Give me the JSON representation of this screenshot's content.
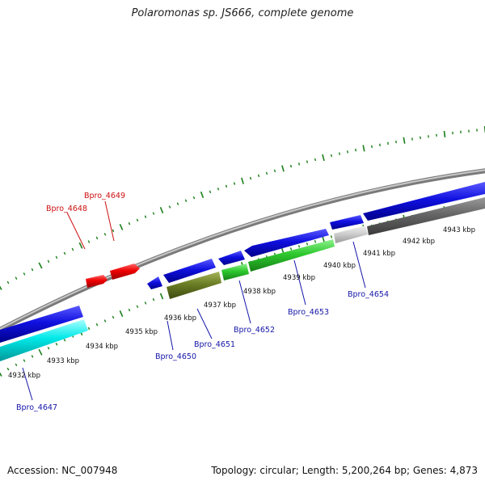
{
  "title": "Polaromonas sp. JS666, complete genome",
  "footer": {
    "accession": "Accession: NC_007948",
    "summary": "Topology: circular; Length: 5,200,264 bp; Genes: 4,873"
  },
  "colors": {
    "tick": "#1a7f1a",
    "backbone": "#9a9a9a",
    "label_blue": "#1515a8",
    "label_red": "#cc1010"
  },
  "kbp_labels": [
    {
      "id": "k4932",
      "text": "4932 kbp"
    },
    {
      "id": "k4933",
      "text": "4933 kbp"
    },
    {
      "id": "k4934",
      "text": "4934 kbp"
    },
    {
      "id": "k4935",
      "text": "4935 kbp"
    },
    {
      "id": "k4936",
      "text": "4936 kbp"
    },
    {
      "id": "k4937",
      "text": "4937 kbp"
    },
    {
      "id": "k4938",
      "text": "4938 kbp"
    },
    {
      "id": "k4939",
      "text": "4939 kbp"
    },
    {
      "id": "k4940",
      "text": "4940 kbp"
    },
    {
      "id": "k4941",
      "text": "4941 kbp"
    },
    {
      "id": "k4942",
      "text": "4942 kbp"
    },
    {
      "id": "k4943",
      "text": "4943 kbp"
    }
  ],
  "gene_labels": [
    {
      "id": "g4647",
      "text": "Bpro_4647",
      "color": "#1515a8"
    },
    {
      "id": "g4648",
      "text": "Bpro_4648",
      "color": "#cc1010"
    },
    {
      "id": "g4649",
      "text": "Bpro_4649",
      "color": "#cc1010"
    },
    {
      "id": "g4650",
      "text": "Bpro_4650",
      "color": "#1515a8"
    },
    {
      "id": "g4651",
      "text": "Bpro_4651",
      "color": "#1515a8"
    },
    {
      "id": "g4652",
      "text": "Bpro_4652",
      "color": "#1515a8"
    },
    {
      "id": "g4653",
      "text": "Bpro_4653",
      "color": "#1515a8"
    },
    {
      "id": "g4654",
      "text": "Bpro_4654",
      "color": "#1515a8"
    }
  ]
}
